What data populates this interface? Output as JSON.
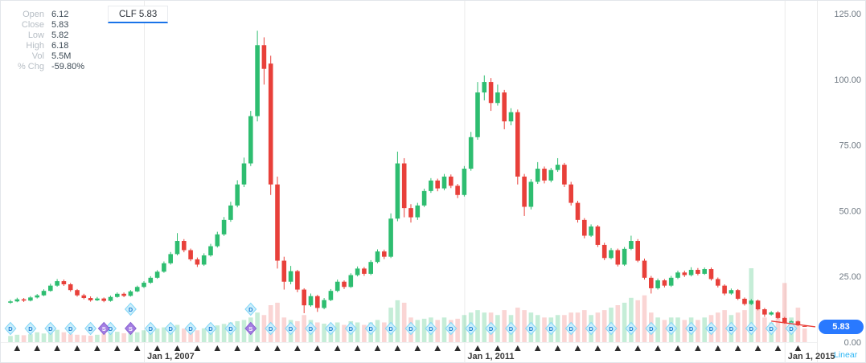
{
  "tab": {
    "label": "CLF 5.83",
    "accent": "#1a73e8"
  },
  "legend": {
    "rows": [
      {
        "label": "Open",
        "value": "6.12"
      },
      {
        "label": "Close",
        "value": "5.83"
      },
      {
        "label": "Low",
        "value": "5.82"
      },
      {
        "label": "High",
        "value": "6.18"
      },
      {
        "label": "Vol",
        "value": "5.5M"
      },
      {
        "label": "% Chg",
        "value": "-59.80%"
      }
    ]
  },
  "price_tag": {
    "label": "5.83",
    "color": "#2979ff"
  },
  "footer": {
    "scale_label": "Linear",
    "scale_color": "#2db6f5"
  },
  "chart_data": {
    "type": "candlestick",
    "symbol": "CLF",
    "interval": "monthly",
    "start_month": "2005-05",
    "ylim": [
      0,
      125
    ],
    "grid": "vertical-date-lines",
    "last_price": 5.83,
    "y_ticks": [
      {
        "value": 125,
        "label": "125.00"
      },
      {
        "value": 100,
        "label": "100.00"
      },
      {
        "value": 75,
        "label": "75.00"
      },
      {
        "value": 50,
        "label": "50.00"
      },
      {
        "value": 25,
        "label": "25.00"
      },
      {
        "value": 0,
        "label": "0.00"
      }
    ],
    "x_ticks": [
      {
        "index": 20,
        "label": "Jan 1, 2007"
      },
      {
        "index": 68,
        "label": "Jan 1, 2011"
      },
      {
        "index": 116,
        "label": "Jan 1, 2015"
      }
    ],
    "colors": {
      "up": "#2ebd70",
      "down": "#e8403a",
      "grid": "#ebebeb",
      "axis_text": "#6f7983",
      "x_tick_text": "#3c3c3c",
      "dividend_fill": "#cdeffb",
      "dividend_stroke": "#82d6f7",
      "dividend_text": "#1f7fd4",
      "split_fill": "#a47ee2",
      "split_stroke": "#8a63d2",
      "split_text": "#ffffff",
      "earnings": "#2b2b2b"
    },
    "events": {
      "dividend_letter": "D",
      "split_letter": "S",
      "dividends_idx": [
        0,
        3,
        6,
        9,
        12,
        15,
        18,
        21,
        24,
        27,
        30,
        33,
        36,
        39,
        42,
        45,
        48,
        51,
        54,
        57,
        60,
        63,
        66,
        69,
        72,
        75,
        78,
        81,
        84,
        87,
        90,
        93,
        96,
        99,
        102,
        105,
        108,
        111,
        114,
        117
      ],
      "splits_idx": [
        14,
        18,
        36
      ],
      "earnings_idx": [
        1,
        4,
        7,
        10,
        13,
        16,
        19,
        22,
        25,
        28,
        31,
        34,
        37,
        40,
        43,
        46,
        49,
        52,
        55,
        58,
        61,
        64,
        67,
        70,
        73,
        76,
        79,
        82,
        85,
        88,
        91,
        94,
        97,
        100,
        103,
        106,
        109,
        112,
        115,
        118
      ]
    },
    "candles": [
      [
        15.0,
        16.1,
        14.6,
        15.5,
        2.5
      ],
      [
        15.5,
        16.9,
        15.2,
        16.3,
        3
      ],
      [
        16.3,
        16.8,
        15.3,
        15.8,
        2.8
      ],
      [
        15.8,
        17.5,
        15.5,
        17.0,
        3.2
      ],
      [
        17.0,
        18.3,
        16.6,
        17.8,
        4
      ],
      [
        17.8,
        20.1,
        17.5,
        19.5,
        3.5
      ],
      [
        19.5,
        22.2,
        19.2,
        21.5,
        4.2
      ],
      [
        21.5,
        24.0,
        21.1,
        23.2,
        5
      ],
      [
        23.2,
        23.8,
        21.4,
        22.0,
        4
      ],
      [
        22.0,
        22.5,
        19.2,
        19.8,
        3.2
      ],
      [
        19.8,
        20.2,
        17.3,
        17.8,
        3
      ],
      [
        17.8,
        18.4,
        16.3,
        16.8,
        2.8
      ],
      [
        16.8,
        17.4,
        15.4,
        15.9,
        2.6
      ],
      [
        15.9,
        17.2,
        15.6,
        16.6,
        3
      ],
      [
        16.6,
        17.0,
        15.2,
        15.7,
        3.4
      ],
      [
        15.7,
        17.7,
        15.4,
        17.2,
        3.8
      ],
      [
        17.2,
        18.9,
        16.9,
        18.4,
        4.2
      ],
      [
        18.4,
        18.9,
        17.1,
        17.6,
        3.6
      ],
      [
        17.6,
        19.8,
        17.3,
        19.3,
        4.5
      ],
      [
        19.3,
        21.5,
        19.0,
        21.0,
        4
      ],
      [
        21.0,
        23.2,
        20.6,
        22.6,
        4.8
      ],
      [
        22.6,
        25.1,
        22.2,
        24.5,
        5.2
      ],
      [
        24.5,
        27.4,
        24.1,
        26.8,
        5.5
      ],
      [
        26.8,
        30.7,
        26.4,
        30.0,
        6
      ],
      [
        30.0,
        34.3,
        29.5,
        33.5,
        6.5
      ],
      [
        33.5,
        41.5,
        33.0,
        38.5,
        7
      ],
      [
        38.5,
        39.2,
        34.2,
        35.0,
        5.5
      ],
      [
        35.0,
        35.6,
        30.8,
        31.5,
        5
      ],
      [
        31.5,
        32.2,
        28.6,
        29.5,
        4.8
      ],
      [
        29.5,
        33.8,
        29.0,
        33.0,
        5.6
      ],
      [
        33.0,
        37.4,
        32.5,
        36.5,
        6.2
      ],
      [
        36.5,
        42.0,
        36.0,
        41.0,
        6.8
      ],
      [
        41.0,
        47.6,
        40.4,
        46.5,
        7.4
      ],
      [
        46.5,
        53.4,
        45.8,
        52.0,
        8
      ],
      [
        52.0,
        61.6,
        51.3,
        60.0,
        8.5
      ],
      [
        60.0,
        70.2,
        59.0,
        68.0,
        9
      ],
      [
        68.0,
        88.0,
        67.0,
        86.0,
        10
      ],
      [
        86.0,
        118.5,
        84.0,
        113.0,
        12
      ],
      [
        113.0,
        116.0,
        98.0,
        104.0,
        11
      ],
      [
        106.0,
        109.0,
        56.0,
        60.0,
        15
      ],
      [
        60.0,
        63.0,
        28.0,
        31.0,
        16
      ],
      [
        31.0,
        32.5,
        20.0,
        23.0,
        10
      ],
      [
        23.0,
        29.0,
        22.0,
        27.0,
        9
      ],
      [
        27.0,
        27.5,
        19.0,
        20.0,
        8.5
      ],
      [
        20.0,
        20.5,
        11.0,
        14.0,
        11
      ],
      [
        14.0,
        18.5,
        13.5,
        17.5,
        9
      ],
      [
        17.5,
        18.0,
        11.5,
        13.0,
        8
      ],
      [
        13.0,
        16.8,
        12.5,
        16.0,
        7.5
      ],
      [
        16.0,
        20.2,
        15.6,
        19.5,
        7
      ],
      [
        19.5,
        23.8,
        19.0,
        23.0,
        8
      ],
      [
        23.0,
        23.5,
        20.2,
        21.0,
        7
      ],
      [
        21.0,
        26.2,
        20.6,
        25.5,
        8.5
      ],
      [
        25.5,
        28.8,
        25.0,
        28.0,
        8
      ],
      [
        28.0,
        28.6,
        25.2,
        26.0,
        7
      ],
      [
        26.0,
        31.2,
        25.5,
        30.5,
        8
      ],
      [
        30.5,
        35.3,
        30.0,
        34.5,
        9
      ],
      [
        34.5,
        35.2,
        31.6,
        32.5,
        8
      ],
      [
        32.5,
        49.0,
        32.0,
        47.0,
        14
      ],
      [
        47.0,
        72.5,
        46.0,
        68.0,
        17
      ],
      [
        68.0,
        70.0,
        47.5,
        51.0,
        16
      ],
      [
        51.0,
        52.5,
        45.5,
        47.5,
        10
      ],
      [
        47.5,
        53.0,
        46.5,
        52.0,
        9
      ],
      [
        52.0,
        58.4,
        51.4,
        57.5,
        9.5
      ],
      [
        57.5,
        62.4,
        56.8,
        61.5,
        10
      ],
      [
        61.5,
        62.2,
        57.4,
        58.5,
        9
      ],
      [
        58.5,
        64.0,
        57.8,
        63.0,
        10
      ],
      [
        63.0,
        63.8,
        58.6,
        59.5,
        9
      ],
      [
        59.5,
        60.2,
        54.8,
        56.0,
        9.5
      ],
      [
        56.0,
        67.0,
        55.4,
        66.0,
        11
      ],
      [
        66.0,
        80.0,
        65.2,
        78.0,
        12
      ],
      [
        78.0,
        99.0,
        77.0,
        95.0,
        13
      ],
      [
        95.0,
        101.5,
        92.0,
        99.0,
        12
      ],
      [
        99.0,
        100.5,
        88.0,
        91.0,
        12
      ],
      [
        91.0,
        98.0,
        90.0,
        95.0,
        11
      ],
      [
        95.0,
        96.0,
        81.0,
        84.0,
        13
      ],
      [
        84.0,
        89.0,
        82.5,
        87.5,
        11
      ],
      [
        87.5,
        88.5,
        60.0,
        63.0,
        14
      ],
      [
        63.0,
        64.0,
        48.0,
        51.5,
        13
      ],
      [
        51.5,
        62.0,
        50.5,
        61.0,
        12
      ],
      [
        61.0,
        68.5,
        60.2,
        66.0,
        11
      ],
      [
        66.0,
        66.8,
        60.4,
        61.5,
        10
      ],
      [
        61.5,
        66.3,
        60.8,
        65.5,
        10
      ],
      [
        65.5,
        70.0,
        64.8,
        67.5,
        11
      ],
      [
        67.5,
        68.2,
        59.0,
        60.0,
        11
      ],
      [
        60.0,
        61.0,
        52.0,
        53.0,
        12
      ],
      [
        53.0,
        53.8,
        45.5,
        46.5,
        12
      ],
      [
        46.5,
        47.2,
        39.5,
        40.5,
        13
      ],
      [
        40.5,
        44.8,
        40.0,
        44.0,
        11
      ],
      [
        44.0,
        44.6,
        36.2,
        37.0,
        12
      ],
      [
        37.0,
        37.8,
        31.2,
        32.0,
        13
      ],
      [
        32.0,
        35.8,
        31.5,
        35.0,
        14
      ],
      [
        35.0,
        35.6,
        28.8,
        29.5,
        15
      ],
      [
        29.5,
        36.2,
        29.0,
        35.5,
        16
      ],
      [
        35.5,
        40.5,
        35.0,
        38.5,
        18
      ],
      [
        38.5,
        39.2,
        30.4,
        31.0,
        17
      ],
      [
        31.0,
        31.8,
        23.8,
        24.5,
        19
      ],
      [
        24.5,
        25.2,
        18.5,
        20.5,
        12
      ],
      [
        20.5,
        24.2,
        20.0,
        23.5,
        10
      ],
      [
        23.5,
        24.0,
        20.8,
        21.5,
        9
      ],
      [
        21.5,
        25.2,
        21.0,
        24.5,
        10
      ],
      [
        24.5,
        27.2,
        24.0,
        26.5,
        10
      ],
      [
        26.5,
        27.2,
        24.8,
        25.5,
        9
      ],
      [
        25.5,
        28.5,
        25.0,
        27.5,
        10
      ],
      [
        27.5,
        28.2,
        25.4,
        26.0,
        9
      ],
      [
        26.0,
        28.4,
        25.6,
        27.8,
        10
      ],
      [
        27.8,
        28.4,
        23.4,
        24.0,
        11
      ],
      [
        24.0,
        24.6,
        20.8,
        21.5,
        12
      ],
      [
        21.5,
        22.0,
        17.8,
        18.5,
        13
      ],
      [
        18.5,
        20.4,
        18.0,
        19.8,
        11
      ],
      [
        19.8,
        20.2,
        16.0,
        16.5,
        12
      ],
      [
        16.5,
        17.0,
        13.9,
        14.5,
        13
      ],
      [
        14.5,
        16.4,
        14.1,
        15.8,
        30
      ],
      [
        15.8,
        16.2,
        12.1,
        12.5,
        14
      ],
      [
        12.5,
        13.0,
        9.6,
        10.5,
        10
      ],
      [
        10.5,
        11.8,
        10.1,
        11.3,
        8
      ],
      [
        11.3,
        11.8,
        8.8,
        9.2,
        12
      ],
      [
        9.2,
        9.6,
        7.0,
        7.4,
        24
      ],
      [
        7.4,
        8.3,
        7.1,
        7.9,
        10
      ],
      [
        7.9,
        8.2,
        6.1,
        6.4,
        14
      ],
      [
        6.12,
        6.18,
        5.82,
        5.83,
        5.5
      ]
    ]
  }
}
